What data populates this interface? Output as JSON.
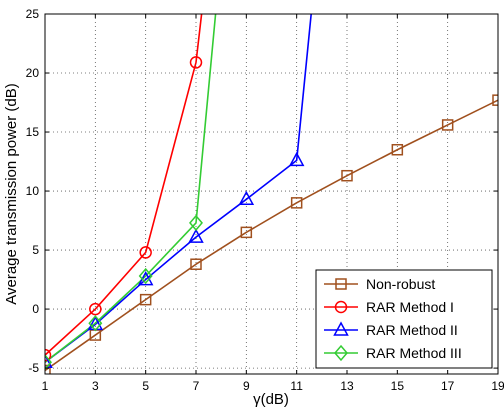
{
  "chart_data": {
    "type": "line",
    "title": "",
    "xlabel": "γ(dB)",
    "ylabel": "Average transmission power (dB)",
    "xlim": [
      1,
      19
    ],
    "ylim": [
      -5.5,
      25
    ],
    "x_ticks": [
      1,
      3,
      5,
      7,
      9,
      11,
      13,
      15,
      17,
      19
    ],
    "y_ticks": [
      -5,
      0,
      5,
      10,
      15,
      20,
      25
    ],
    "grid": true,
    "grid_style": "dotted",
    "legend_position": "bottom-right",
    "series": [
      {
        "name": "Non-robust",
        "color": "#a0501e",
        "marker": "square",
        "x": [
          1,
          3,
          5,
          7,
          9,
          11,
          13,
          15,
          17,
          19
        ],
        "y": [
          -5.2,
          -2.2,
          0.8,
          3.8,
          6.5,
          9.0,
          11.3,
          13.5,
          15.6,
          17.7
        ]
      },
      {
        "name": "RAR Method I",
        "color": "#ff0000",
        "marker": "circle",
        "x": [
          1,
          3,
          5,
          7,
          7.25
        ],
        "y": [
          -3.9,
          0.0,
          4.8,
          20.9,
          25.5
        ]
      },
      {
        "name": "RAR Method II",
        "color": "#0000ff",
        "marker": "triangle",
        "x": [
          1,
          3,
          5,
          7,
          9,
          11,
          11.6
        ],
        "y": [
          -4.5,
          -1.3,
          2.5,
          6.1,
          9.3,
          12.6,
          25.5
        ]
      },
      {
        "name": "RAR Method III",
        "color": "#33cc33",
        "marker": "diamond",
        "x": [
          1,
          3,
          5,
          7,
          7.8
        ],
        "y": [
          -4.5,
          -1.2,
          2.8,
          7.3,
          25.5
        ]
      }
    ]
  }
}
